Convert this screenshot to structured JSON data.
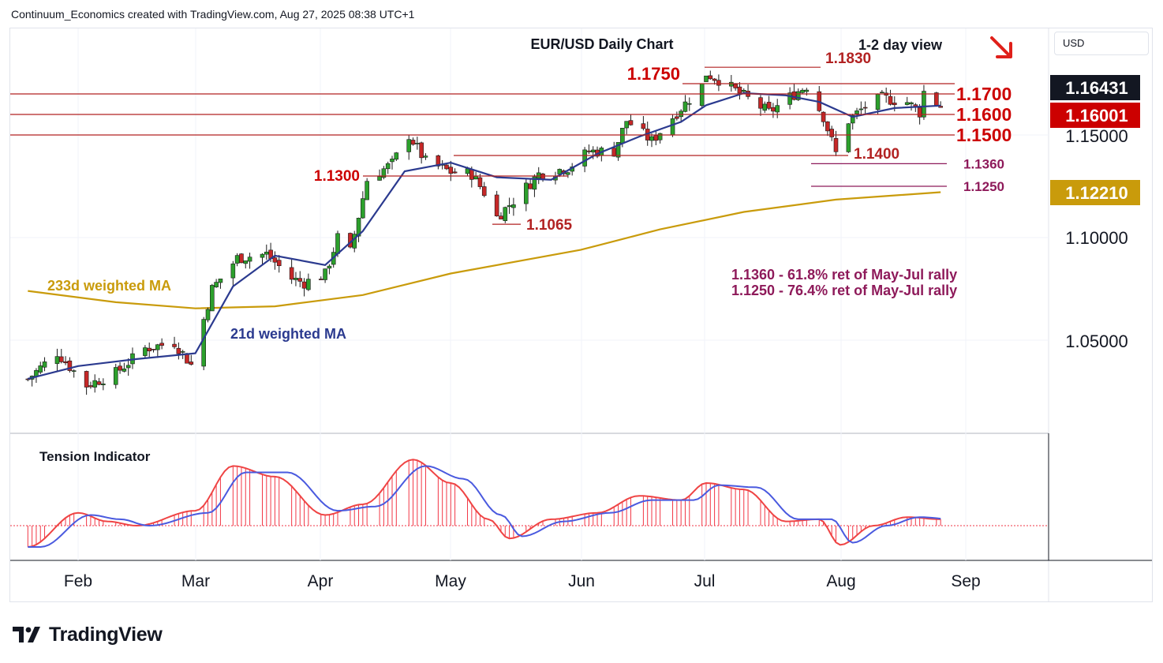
{
  "header": {
    "text": "Continuum_Economics created with TradingView.com, Aug 27, 2025 08:38 UTC+1"
  },
  "currency_button": {
    "label": "USD"
  },
  "brand": {
    "name": "TradingView",
    "logo_icon": "tradingview-logo-icon"
  },
  "chart_data": [
    {
      "type": "candlestick",
      "title": "EUR/USD Daily Chart",
      "subtitle": "1-2 day view",
      "bias_icon": "down-right-arrow-icon",
      "y_axis_ticks": [
        "1.15000",
        "1.10000",
        "1.05000"
      ],
      "x_axis_ticks": [
        "Feb",
        "Mar",
        "Apr",
        "May",
        "Jun",
        "Jul",
        "Aug",
        "Sep"
      ],
      "price_badges": [
        {
          "label": "1.16431",
          "color": "#131722",
          "text_color": "#ffffff"
        },
        {
          "label": "1.16001",
          "color": "#cc0000",
          "text_color": "#ffffff"
        },
        {
          "label": "1.12210",
          "color": "#c99b0b",
          "text_color": "#ffffff"
        }
      ],
      "levels": [
        {
          "value": 1.183,
          "label": "1.1830"
        },
        {
          "value": 1.175,
          "label": "1.1750"
        },
        {
          "value": 1.17,
          "label": "1.1700"
        },
        {
          "value": 1.16,
          "label": "1.1600"
        },
        {
          "value": 1.15,
          "label": "1.1500"
        },
        {
          "value": 1.14,
          "label": "1.1400"
        },
        {
          "value": 1.136,
          "label": "1.1360"
        },
        {
          "value": 1.13,
          "label": "1.1300"
        },
        {
          "value": 1.125,
          "label": "1.1250"
        },
        {
          "value": 1.1065,
          "label": "1.1065"
        }
      ],
      "annotations": [
        "1.1360 - 61.8% ret of May-Jul rally",
        "1.1250 - 76.4% ret of May-Jul rally"
      ],
      "series": [
        {
          "name": "233d weighted MA",
          "color": "#c99b0b",
          "x": [
            "2025-01-20",
            "2025-02-10",
            "2025-03-01",
            "2025-03-20",
            "2025-04-10",
            "2025-05-01",
            "2025-06-01",
            "2025-06-20",
            "2025-07-10",
            "2025-08-01",
            "2025-08-26"
          ],
          "values": [
            1.074,
            1.0685,
            1.0655,
            1.0665,
            1.072,
            1.0825,
            1.094,
            1.104,
            1.1125,
            1.1185,
            1.1221
          ]
        },
        {
          "name": "21d weighted MA",
          "color": "#2b3a8f",
          "x": [
            "2025-01-20",
            "2025-02-01",
            "2025-02-15",
            "2025-03-01",
            "2025-03-10",
            "2025-03-20",
            "2025-04-01",
            "2025-04-10",
            "2025-04-20",
            "2025-05-01",
            "2025-05-12",
            "2025-05-25",
            "2025-06-05",
            "2025-06-15",
            "2025-06-25",
            "2025-07-01",
            "2025-07-10",
            "2025-07-20",
            "2025-07-28",
            "2025-08-05",
            "2025-08-15",
            "2025-08-26"
          ],
          "values": [
            1.0312,
            1.0374,
            1.0408,
            1.0436,
            1.0762,
            1.0912,
            1.0866,
            1.1031,
            1.1323,
            1.1365,
            1.1294,
            1.1282,
            1.1408,
            1.1492,
            1.1564,
            1.1645,
            1.1704,
            1.1693,
            1.1661,
            1.1588,
            1.1631,
            1.1643
          ]
        }
      ]
    },
    {
      "type": "area",
      "title": "Tension Indicator",
      "colors": {
        "histogram": "#f23645",
        "signal": "#ef4444",
        "average": "#4a5adf"
      },
      "x": [
        "2025-01-20",
        "2025-02-01",
        "2025-02-08",
        "2025-02-15",
        "2025-03-01",
        "2025-03-10",
        "2025-03-20",
        "2025-04-01",
        "2025-04-10",
        "2025-04-22",
        "2025-05-01",
        "2025-05-10",
        "2025-05-15",
        "2025-05-25",
        "2025-06-05",
        "2025-06-15",
        "2025-06-25",
        "2025-07-01",
        "2025-07-10",
        "2025-07-20",
        "2025-07-28",
        "2025-08-02",
        "2025-08-10",
        "2025-08-18",
        "2025-08-26"
      ],
      "values": [
        -1.0,
        0.6,
        0.2,
        0.0,
        0.7,
        2.8,
        2.3,
        0.5,
        1.0,
        3.1,
        2.0,
        0.3,
        -0.6,
        0.3,
        0.6,
        1.4,
        1.2,
        2.0,
        1.7,
        0.2,
        0.3,
        -0.9,
        0.0,
        0.4,
        0.3
      ],
      "average": [
        -1.0,
        0.5,
        0.3,
        0.0,
        0.6,
        2.5,
        2.5,
        0.7,
        0.9,
        2.8,
        2.2,
        0.5,
        -0.5,
        0.2,
        0.6,
        1.2,
        1.2,
        1.9,
        1.8,
        0.3,
        0.3,
        -0.8,
        0.0,
        0.4,
        0.3
      ]
    }
  ]
}
